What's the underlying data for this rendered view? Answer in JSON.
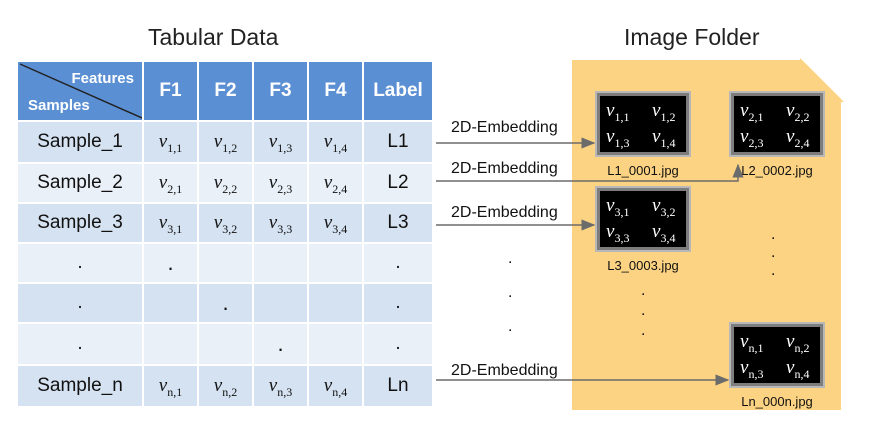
{
  "titles": {
    "left": "Tabular Data",
    "right": "Image Folder"
  },
  "table": {
    "corner_top": "Features",
    "corner_bottom": "Samples",
    "headers": [
      "F1",
      "F2",
      "F3",
      "F4",
      "Label"
    ],
    "rows": [
      {
        "sample": "Sample_1",
        "label": "L1"
      },
      {
        "sample": "Sample_2",
        "label": "L2"
      },
      {
        "sample": "Sample_3",
        "label": "L3"
      },
      {
        "sample": ".",
        "label": "."
      },
      {
        "sample": ".",
        "label": "."
      },
      {
        "sample": ".",
        "label": "."
      },
      {
        "sample": "Sample_n",
        "label": "Ln"
      }
    ],
    "var_letter": "v",
    "row_subs": [
      "1",
      "2",
      "3",
      "",
      "",
      "",
      "n"
    ]
  },
  "embedding_label": "2D-Embedding",
  "dot": ".",
  "images": [
    {
      "file": "L1_0001.jpg",
      "sub": "1"
    },
    {
      "file": "L2_0002.jpg",
      "sub": "2"
    },
    {
      "file": "L3_0003.jpg",
      "sub": "3"
    },
    {
      "file": "Ln_000n.jpg",
      "sub": "n"
    }
  ],
  "colors": {
    "header": "#5b8fd3",
    "row_dark": "#d5e2f1",
    "row_light": "#eaf0f8",
    "folder": "#fcd382"
  }
}
